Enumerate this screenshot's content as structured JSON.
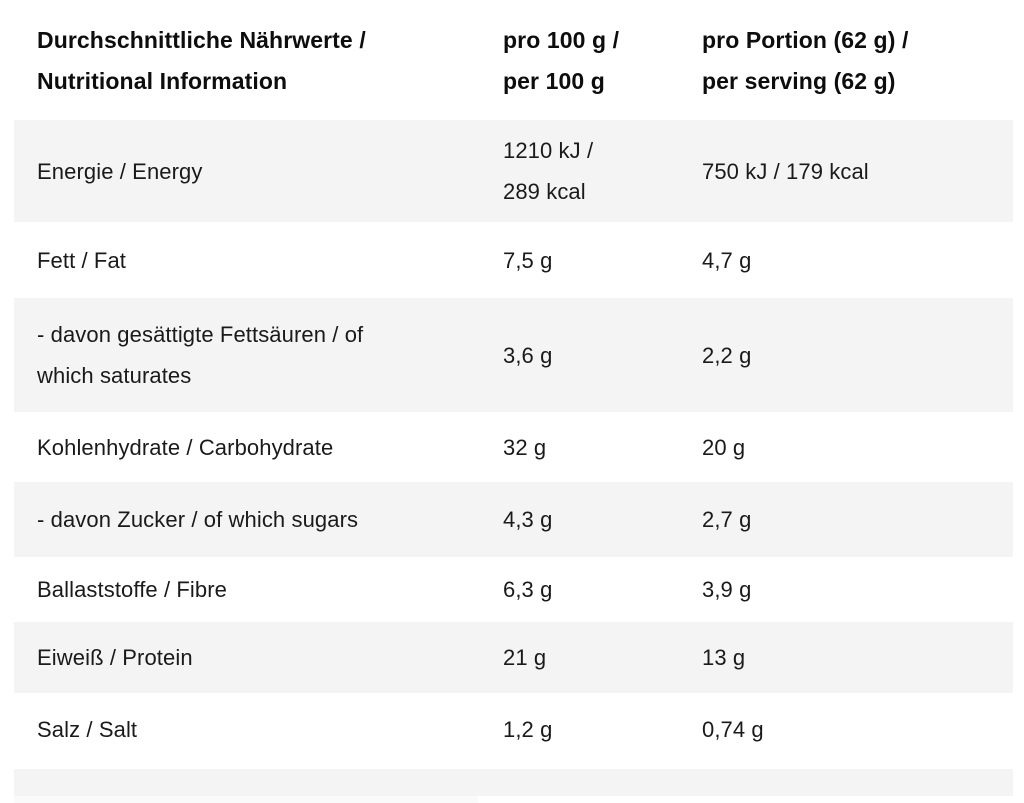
{
  "chart_data": {
    "type": "table",
    "title": "Durchschnittliche Nährwerte / Nutritional Information",
    "columns": [
      "Durchschnittliche Nährwerte / Nutritional Information",
      "pro 100 g / per 100 g",
      "pro Portion (62 g) / per serving (62 g)"
    ],
    "header_display": {
      "label": "Durchschnittliche Nährwerte /\nNutritional Information",
      "per_100g": "pro 100 g /\nper 100 g",
      "per_serving": "pro Portion (62 g) /\nper serving (62 g)"
    },
    "rows": [
      {
        "label": "Energie / Energy",
        "per_100g": "1210 kJ /\n289 kcal",
        "per_serving": "750 kJ / 179 kcal"
      },
      {
        "label": "Fett / Fat",
        "per_100g": "7,5 g",
        "per_serving": "4,7 g"
      },
      {
        "label": "- davon gesättigte Fettsäuren / of\nwhich saturates",
        "per_100g": "3,6 g",
        "per_serving": "2,2 g"
      },
      {
        "label": "Kohlenhydrate / Carbohydrate",
        "per_100g": "32 g",
        "per_serving": "20 g"
      },
      {
        "label": "- davon Zucker / of which sugars",
        "per_100g": "4,3 g",
        "per_serving": "2,7 g"
      },
      {
        "label": "Ballaststoffe / Fibre",
        "per_100g": "6,3 g",
        "per_serving": "3,9 g"
      },
      {
        "label": "Eiweiß / Protein",
        "per_100g": "21 g",
        "per_serving": "13 g"
      },
      {
        "label": "Salz / Salt",
        "per_100g": "1,2 g",
        "per_serving": "0,74 g"
      }
    ],
    "serving_size": "62 g",
    "layout": {
      "striped_rows": true,
      "first_row_striped": true,
      "grid": false,
      "legend": false
    }
  },
  "colors": {
    "stripe_row_bg": "#f4f4f5",
    "partial_row_bg": "#fafafa",
    "text": "#1a1a1a",
    "header_text": "#0d0d0d",
    "page_bg": "#ffffff"
  }
}
